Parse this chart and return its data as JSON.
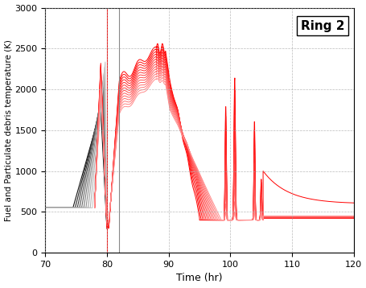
{
  "title": "Ring 2",
  "xlabel": "Time (hr)",
  "ylabel": "Fuel and Particulate debris temperature (K)",
  "xlim": [
    70,
    120
  ],
  "ylim": [
    0,
    3000
  ],
  "xticks": [
    70,
    80,
    90,
    100,
    110,
    120
  ],
  "yticks": [
    0,
    500,
    1000,
    1500,
    2000,
    2500,
    3000
  ],
  "vline_red": 80.0,
  "vline_gray": 82.0,
  "n_black_lines": 10,
  "n_red_lines": 14,
  "background": "#ffffff",
  "grid_color": "#aaaaaa",
  "grid_style": "--",
  "title_fontsize": 11,
  "label_fontsize": 9,
  "tick_fontsize": 8
}
